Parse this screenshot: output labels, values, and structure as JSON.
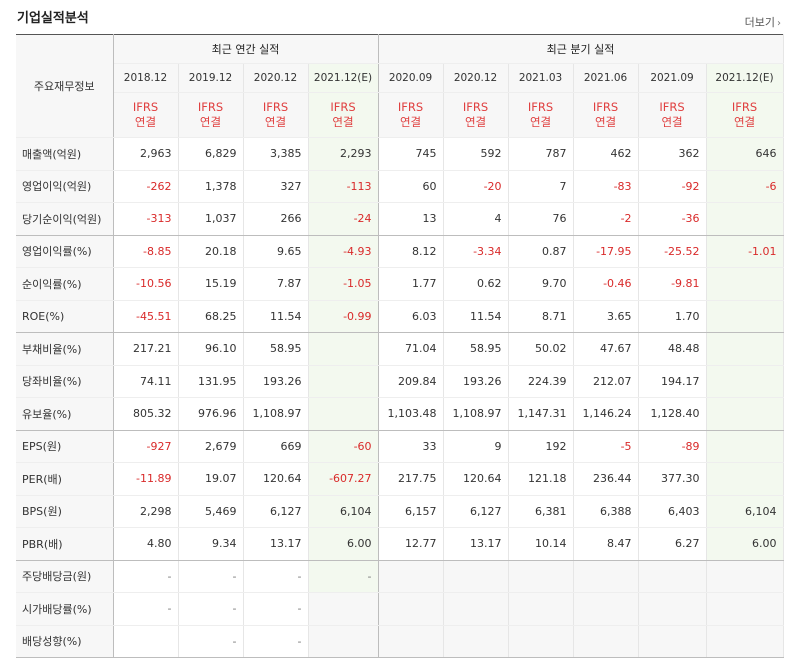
{
  "section": {
    "title": "기업실적분석",
    "more_label": "더보기",
    "more_icon": "chevron-right-icon"
  },
  "header": {
    "row_label": "주요재무정보",
    "annual_group": "최근 연간 실적",
    "quarterly_group": "최근 분기 실적",
    "periods": [
      "2018.12",
      "2019.12",
      "2020.12",
      "2021.12(E)",
      "2020.09",
      "2020.12",
      "2021.03",
      "2021.06",
      "2021.09",
      "2021.12(E)"
    ],
    "ifrs_line1": "IFRS",
    "ifrs_line2": "연결"
  },
  "rows": [
    {
      "label": "매출액(억원)",
      "values": [
        "2,963",
        "6,829",
        "3,385",
        "2,293",
        "745",
        "592",
        "787",
        "462",
        "362",
        "646"
      ]
    },
    {
      "label": "영업이익(억원)",
      "values": [
        "-262",
        "1,378",
        "327",
        "-113",
        "60",
        "-20",
        "7",
        "-83",
        "-92",
        "-6"
      ]
    },
    {
      "label": "당기순이익(억원)",
      "values": [
        "-313",
        "1,037",
        "266",
        "-24",
        "13",
        "4",
        "76",
        "-2",
        "-36",
        ""
      ]
    },
    {
      "label": "영업이익률(%)",
      "values": [
        "-8.85",
        "20.18",
        "9.65",
        "-4.93",
        "8.12",
        "-3.34",
        "0.87",
        "-17.95",
        "-25.52",
        "-1.01"
      ]
    },
    {
      "label": "순이익률(%)",
      "values": [
        "-10.56",
        "15.19",
        "7.87",
        "-1.05",
        "1.77",
        "0.62",
        "9.70",
        "-0.46",
        "-9.81",
        ""
      ]
    },
    {
      "label": "ROE(%)",
      "values": [
        "-45.51",
        "68.25",
        "11.54",
        "-0.99",
        "6.03",
        "11.54",
        "8.71",
        "3.65",
        "1.70",
        ""
      ]
    },
    {
      "label": "부채비율(%)",
      "values": [
        "217.21",
        "96.10",
        "58.95",
        "",
        "71.04",
        "58.95",
        "50.02",
        "47.67",
        "48.48",
        ""
      ]
    },
    {
      "label": "당좌비율(%)",
      "values": [
        "74.11",
        "131.95",
        "193.26",
        "",
        "209.84",
        "193.26",
        "224.39",
        "212.07",
        "194.17",
        ""
      ]
    },
    {
      "label": "유보율(%)",
      "values": [
        "805.32",
        "976.96",
        "1,108.97",
        "",
        "1,103.48",
        "1,108.97",
        "1,147.31",
        "1,146.24",
        "1,128.40",
        ""
      ]
    },
    {
      "label": "EPS(원)",
      "values": [
        "-927",
        "2,679",
        "669",
        "-60",
        "33",
        "9",
        "192",
        "-5",
        "-89",
        ""
      ]
    },
    {
      "label": "PER(배)",
      "values": [
        "-11.89",
        "19.07",
        "120.64",
        "-607.27",
        "217.75",
        "120.64",
        "121.18",
        "236.44",
        "377.30",
        ""
      ]
    },
    {
      "label": "BPS(원)",
      "values": [
        "2,298",
        "5,469",
        "6,127",
        "6,104",
        "6,157",
        "6,127",
        "6,381",
        "6,388",
        "6,403",
        "6,104"
      ]
    },
    {
      "label": "PBR(배)",
      "values": [
        "4.80",
        "9.34",
        "13.17",
        "6.00",
        "12.77",
        "13.17",
        "10.14",
        "8.47",
        "6.27",
        "6.00"
      ]
    },
    {
      "label": "주당배당금(원)",
      "values": [
        "-",
        "-",
        "-",
        "-",
        "",
        "",
        "",
        "",
        "",
        ""
      ]
    },
    {
      "label": "시가배당률(%)",
      "values": [
        "-",
        "-",
        "-",
        "",
        "",
        "",
        "",
        "",
        "",
        ""
      ]
    },
    {
      "label": "배당성향(%)",
      "values": [
        "",
        "-",
        "-",
        "",
        "",
        "",
        "",
        "",
        "",
        ""
      ]
    }
  ],
  "colors": {
    "negative": "#d92a2a",
    "ifrs": "#e04040",
    "estimate_bg": "#f3f9ef",
    "label_bg": "#f7f7f7"
  }
}
